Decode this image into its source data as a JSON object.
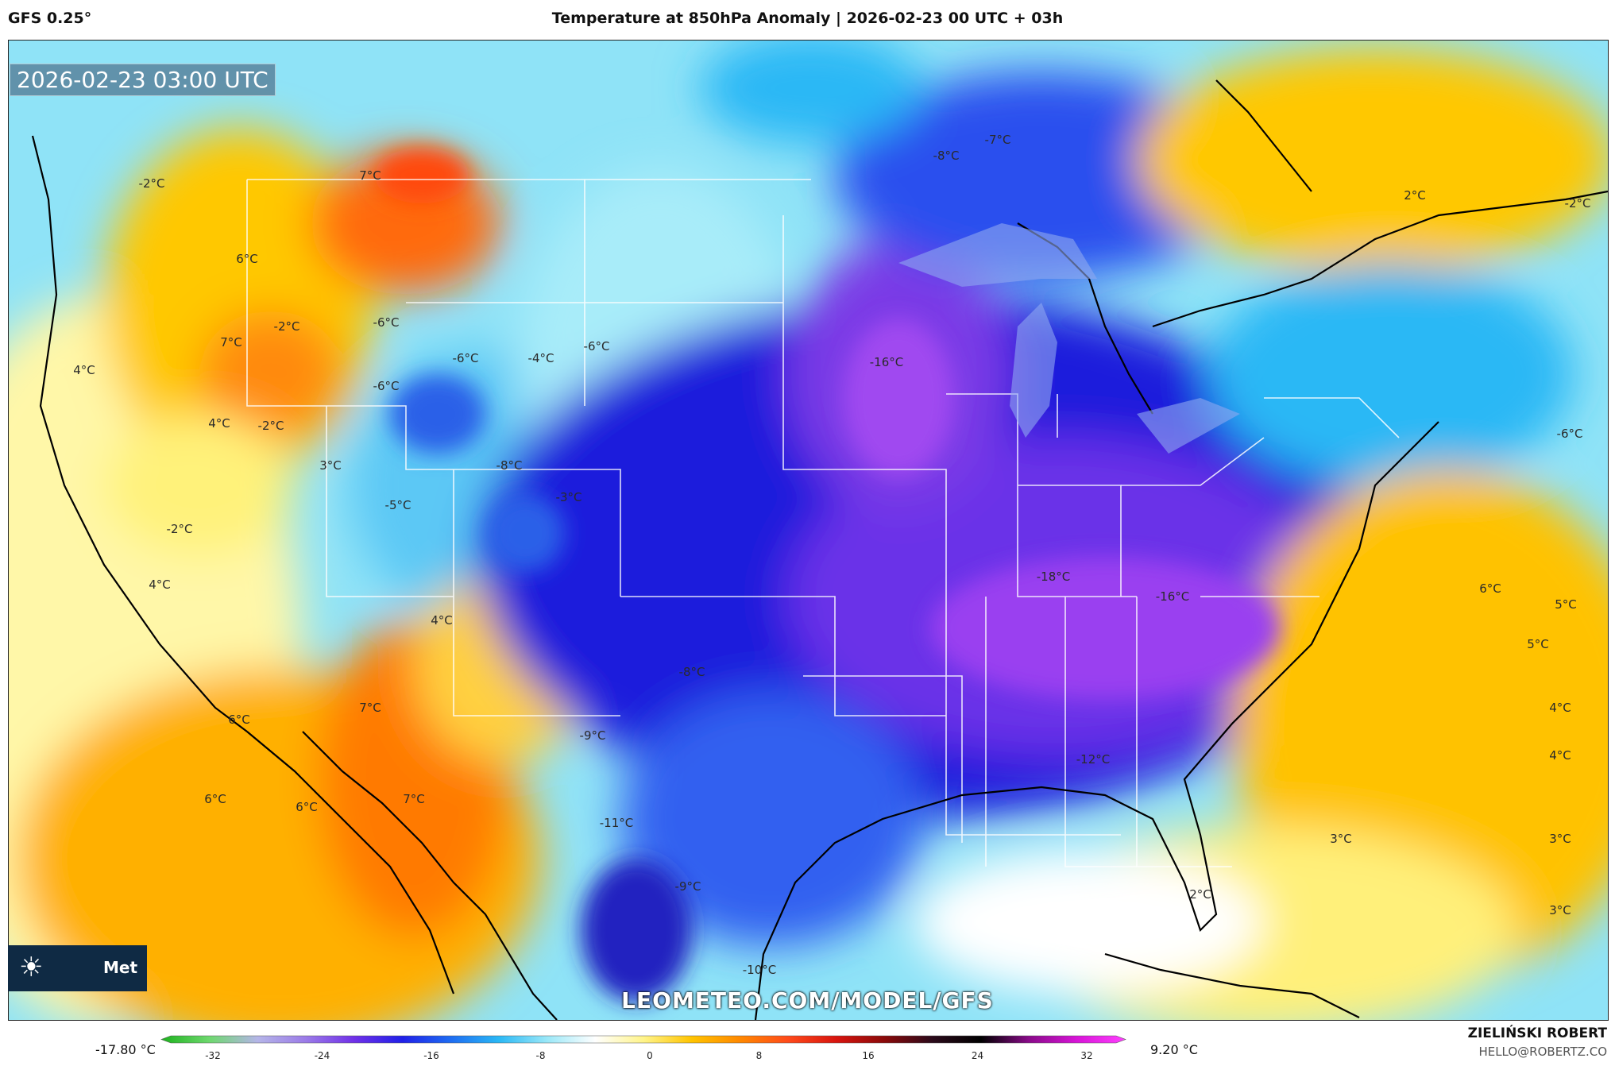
{
  "header": {
    "model": "GFS 0.25°",
    "title": "Temperature at 850hPa Anomaly | 2026-02-23 00 UTC + 03h"
  },
  "map": {
    "timestamp": "2026-02-23 03:00 UTC",
    "watermark": "LEOMETEO.COM/MODEL/GFS",
    "logo_text": "Met",
    "temperature_labels": [
      "-2°C",
      "7°C",
      "6°C",
      "7°C",
      "4°C",
      "-2°C",
      "-6°C",
      "-6°C",
      "-4°C",
      "-6°C",
      "-6°C",
      "4°C",
      "-2°C",
      "3°C",
      "-8°C",
      "-5°C",
      "-3°C",
      "-2°C",
      "4°C",
      "4°C",
      "7°C",
      "6°C",
      "6°C",
      "7°C",
      "6°C",
      "-9°C",
      "-11°C",
      "-8°C",
      "-9°C",
      "-10°C",
      "-16°C",
      "-8°C",
      "-7°C",
      "-18°C",
      "-16°C",
      "-12°C",
      "2°C",
      "2°C",
      "-2°C",
      "-6°C",
      "6°C",
      "5°C",
      "5°C",
      "4°C",
      "4°C",
      "3°C",
      "3°C",
      "3°C"
    ]
  },
  "legend": {
    "min_value": "-17.80 °C",
    "max_value": "9.20 °C",
    "ticks": [
      "-32",
      "-24",
      "-16",
      "-8",
      "0",
      "8",
      "16",
      "24",
      "32"
    ],
    "colors": [
      "#1db31d",
      "#6ed86e",
      "#b5b5e8",
      "#9b7be8",
      "#7030e8",
      "#2020e8",
      "#1e6cf2",
      "#2ab8f5",
      "#9ae8f8",
      "#ffffff",
      "#fff48a",
      "#ffc400",
      "#ff8800",
      "#ff4a1a",
      "#d8140e",
      "#8a0a0a",
      "#2a0a1a",
      "#000000",
      "#8a0a8a",
      "#d814d8",
      "#ff40ff"
    ]
  },
  "credit": {
    "name": "ZIELIŃSKI ROBERT",
    "email": "HELLO@ROBERTZ.CO"
  }
}
